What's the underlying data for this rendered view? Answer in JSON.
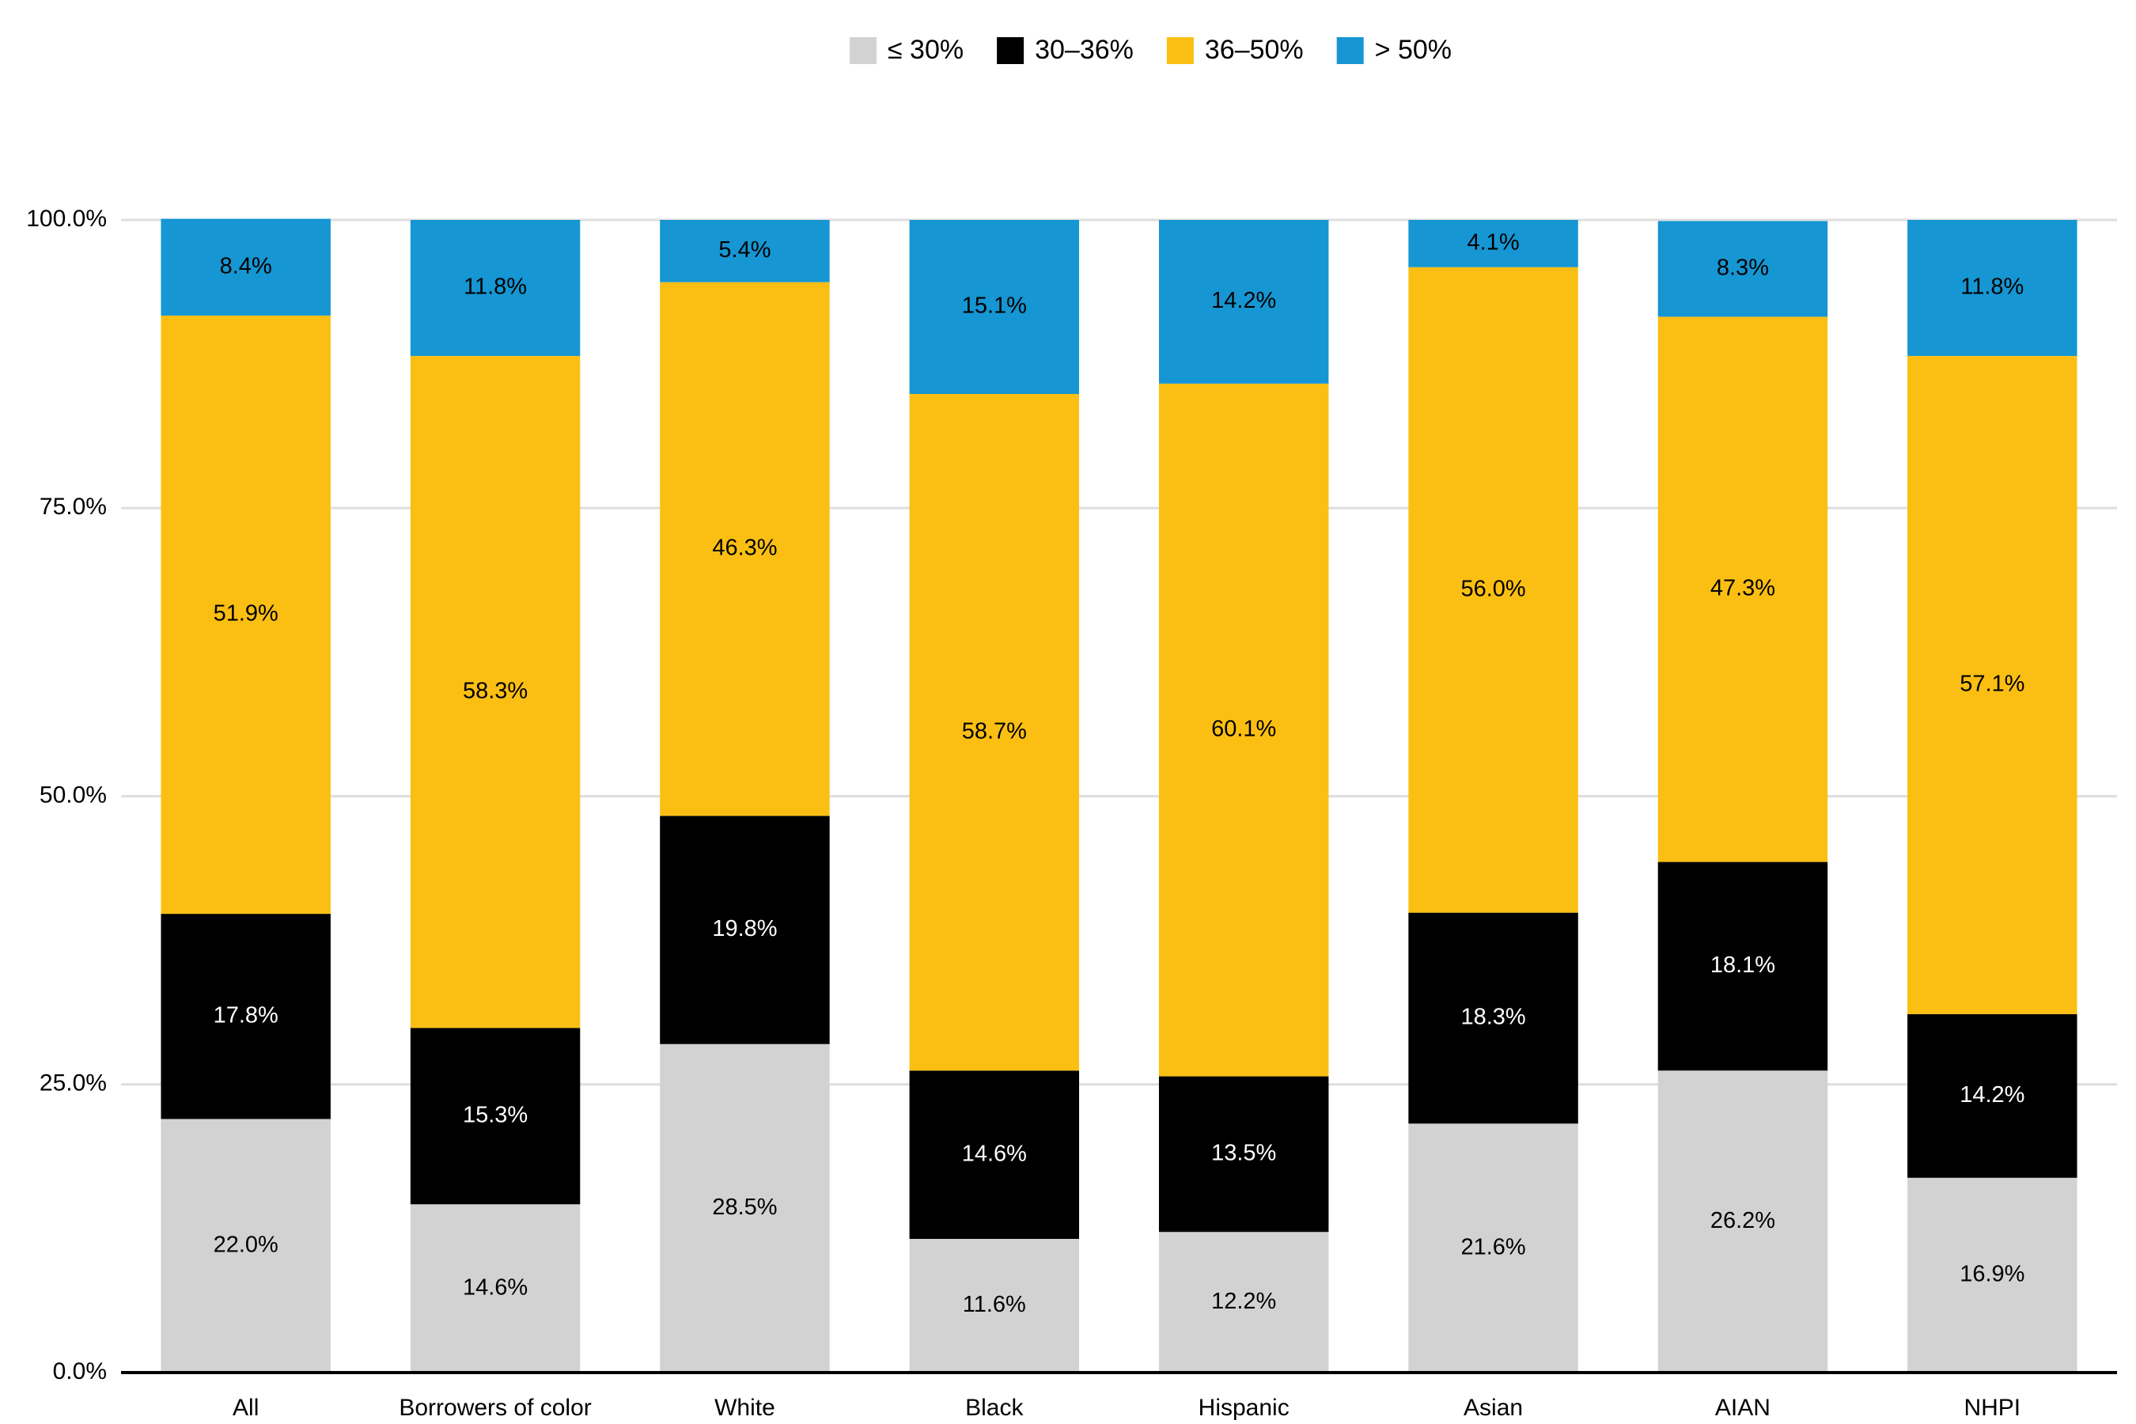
{
  "chart_data": {
    "type": "bar",
    "stacked": true,
    "categories": [
      "All",
      "Borrowers of color",
      "White",
      "Black",
      "Hispanic",
      "Asian",
      "AIAN",
      "NHPI"
    ],
    "series": [
      {
        "name": "≤ 30%",
        "color": "#d2d2d2",
        "values": [
          22.0,
          14.6,
          28.5,
          11.6,
          12.2,
          21.6,
          26.2,
          16.9
        ],
        "value_labels": [
          "22.0%",
          "14.6%",
          "28.5%",
          "11.6%",
          "12.2%",
          "21.6%",
          "26.2%",
          "16.9%"
        ]
      },
      {
        "name": "30–36%",
        "color": "#000000",
        "values": [
          17.8,
          15.3,
          19.8,
          14.6,
          13.5,
          18.3,
          18.1,
          14.2
        ],
        "value_labels": [
          "17.8%",
          "15.3%",
          "19.8%",
          "14.6%",
          "13.5%",
          "18.3%",
          "18.1%",
          "14.2%"
        ]
      },
      {
        "name": "36–50%",
        "color": "#fbbf13",
        "values": [
          51.9,
          58.3,
          46.3,
          58.7,
          60.1,
          56.0,
          47.3,
          57.1
        ],
        "value_labels": [
          "51.9%",
          "58.3%",
          "46.3%",
          "58.7%",
          "60.1%",
          "56.0%",
          "47.3%",
          "57.1%"
        ]
      },
      {
        "name": "> 50%",
        "color": "#1696d2",
        "values": [
          8.4,
          11.8,
          5.4,
          15.1,
          14.2,
          4.1,
          8.3,
          11.8
        ],
        "value_labels": [
          "8.4%",
          "11.8%",
          "5.4%",
          "15.1%",
          "14.2%",
          "4.1%",
          "8.3%",
          "11.8%"
        ]
      }
    ],
    "ylim": [
      0,
      100
    ],
    "yticks": [
      {
        "value": 0,
        "label": "0.0%"
      },
      {
        "value": 25,
        "label": "25.0%"
      },
      {
        "value": 50,
        "label": "50.0%"
      },
      {
        "value": 75,
        "label": "75.0%"
      },
      {
        "value": 100,
        "label": "100.0%"
      }
    ],
    "grid": true,
    "legend": "top"
  }
}
